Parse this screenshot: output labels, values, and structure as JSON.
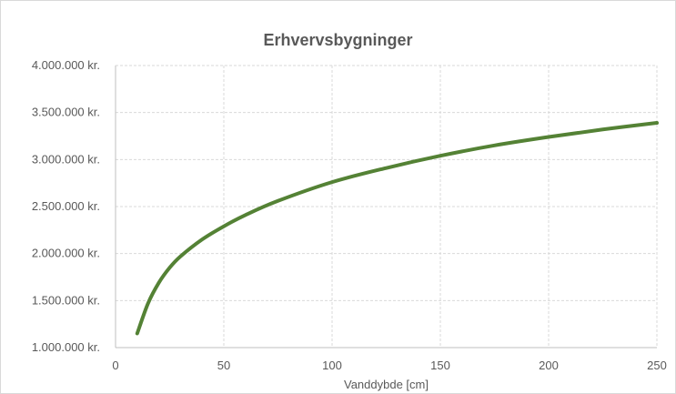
{
  "chart_data": {
    "type": "line",
    "title": "Erhvervsbygninger",
    "xlabel": "Vanddybde [cm]",
    "ylabel": "",
    "xlim": [
      0,
      250
    ],
    "ylim": [
      1000000,
      4000000
    ],
    "x_ticks": [
      0,
      50,
      100,
      150,
      200,
      250
    ],
    "y_ticks": [
      1000000,
      1500000,
      2000000,
      2500000,
      3000000,
      3500000,
      4000000
    ],
    "y_tick_labels": [
      "1.000.000 kr.",
      "1.500.000 kr.",
      "2.000.000 kr.",
      "2.500.000 kr.",
      "3.000.000 kr.",
      "3.500.000 kr.",
      "4.000.000 kr."
    ],
    "grid": true,
    "grid_style": "dashed",
    "series": [
      {
        "color": "#548235",
        "x": [
          10,
          15,
          20,
          25,
          30,
          40,
          50,
          60,
          75,
          100,
          125,
          150,
          175,
          200,
          225,
          250
        ],
        "y": [
          1150000,
          1470000,
          1690000,
          1850000,
          1970000,
          2150000,
          2290000,
          2410000,
          2560000,
          2760000,
          2910000,
          3040000,
          3150000,
          3240000,
          3320000,
          3390000
        ]
      }
    ]
  }
}
